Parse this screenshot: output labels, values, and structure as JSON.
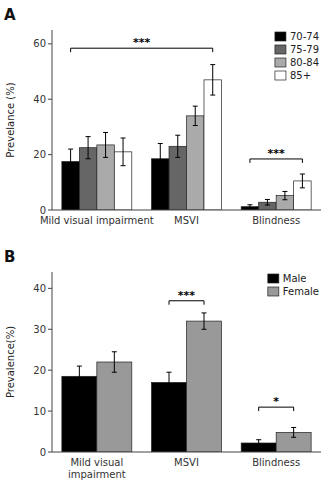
{
  "chart_data": [
    {
      "type": "bar",
      "title": "A",
      "categories": [
        "Mild visual impairment",
        "MSVI",
        "Blindness"
      ],
      "series": [
        {
          "name": "70-74",
          "color": "#000000",
          "values": [
            17.5,
            18.5,
            1.2
          ],
          "errors": [
            4.5,
            5.5,
            0.7
          ]
        },
        {
          "name": "75-79",
          "color": "#666666",
          "values": [
            22.5,
            23.0,
            2.8
          ],
          "errors": [
            4.0,
            4.0,
            1.0
          ]
        },
        {
          "name": "80-84",
          "color": "#aaaaaa",
          "values": [
            23.5,
            34.0,
            5.2
          ],
          "errors": [
            4.5,
            3.5,
            1.5
          ]
        },
        {
          "name": "85+",
          "color": "#ffffff",
          "values": [
            21.0,
            47.0,
            10.5
          ],
          "errors": [
            5.0,
            5.5,
            2.5
          ]
        }
      ],
      "y_label": "Prevelance (%)",
      "ylim": [
        0,
        65
      ],
      "yticks": [
        0,
        20,
        40,
        60
      ],
      "annotations": [
        {
          "text": "***",
          "y": 57,
          "from": {
            "category": "Mild visual impairment",
            "series": "70-74"
          },
          "to": {
            "category": "MSVI",
            "series": "85+"
          }
        },
        {
          "text": "***",
          "y": 17,
          "from": {
            "category": "Blindness",
            "series": "70-74"
          },
          "to": {
            "category": "Blindness",
            "series": "85+"
          }
        }
      ],
      "legend": "upper right",
      "grid": false
    },
    {
      "type": "bar",
      "title": "B",
      "categories": [
        "Mild visual\nimpairment",
        "MSVI",
        "Blindness"
      ],
      "series": [
        {
          "name": "Male",
          "color": "#000000",
          "values": [
            18.5,
            17.0,
            2.2
          ],
          "errors": [
            2.5,
            2.5,
            0.8
          ]
        },
        {
          "name": "Female",
          "color": "#999999",
          "values": [
            22.0,
            32.0,
            4.8
          ],
          "errors": [
            2.5,
            2.0,
            1.2
          ]
        }
      ],
      "y_label": "Prevalence(%)",
      "ylim": [
        0,
        44
      ],
      "yticks": [
        0,
        10,
        20,
        30,
        40
      ],
      "annotations": [
        {
          "text": "***",
          "y": 36,
          "from": {
            "category": "MSVI",
            "series": "Male"
          },
          "to": {
            "category": "MSVI",
            "series": "Female"
          }
        },
        {
          "text": "*",
          "y": 10,
          "from": {
            "category": "Blindness",
            "series": "Male"
          },
          "to": {
            "category": "Blindness",
            "series": "Female"
          }
        }
      ],
      "legend": "upper right",
      "grid": false
    }
  ]
}
